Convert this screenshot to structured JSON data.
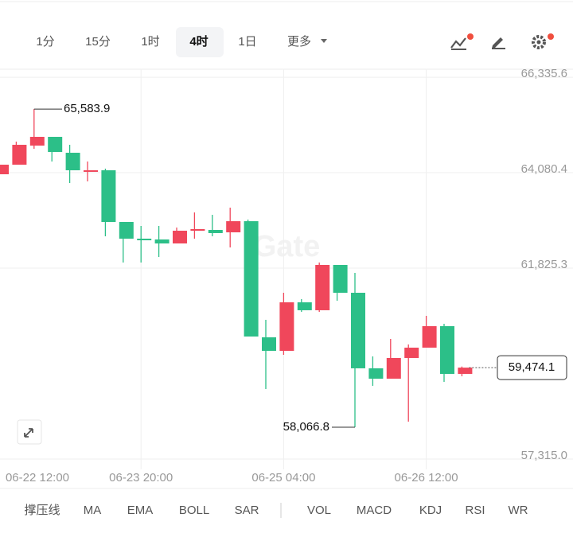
{
  "toolbar": {
    "intervals": [
      "1分",
      "15分",
      "1时",
      "4时",
      "1日",
      "更多"
    ],
    "selected_interval": 3
  },
  "chart_data": {
    "type": "candlestick",
    "watermark": "Gate",
    "x": [
      "06-22 12:00",
      null,
      null,
      null,
      null,
      null,
      null,
      null,
      "06-23 20:00",
      null,
      null,
      null,
      null,
      null,
      null,
      null,
      "06-25 04:00",
      null,
      null,
      null,
      null,
      null,
      null,
      null,
      "06-26 12:00",
      null,
      null
    ],
    "open": [
      64043,
      64269,
      64720,
      64927,
      64551,
      64100,
      64137,
      62916,
      62521,
      62502,
      62408,
      62709,
      62728,
      62671,
      62934,
      60190,
      59871,
      61017,
      60830,
      61901,
      61243,
      59458,
      59213,
      59702,
      59946,
      60454,
      59326
    ],
    "high": [
      64306,
      64814,
      65583.9,
      64927,
      64739,
      64344,
      64175,
      62916,
      62822,
      62822,
      62784,
      63141,
      63085,
      63254,
      62972,
      60604,
      61243,
      61093,
      61957,
      61901,
      61713,
      59739,
      60153,
      60021,
      60698,
      60510,
      59500
    ],
    "low": [
      64043,
      64269,
      64645,
      64344,
      63837,
      63874,
      62577,
      61957,
      61957,
      62089,
      62408,
      62521,
      62577,
      62314,
      60209,
      58969,
      59777,
      60792,
      60792,
      61055,
      58066.8,
      59044,
      59213,
      58198,
      59946,
      59138,
      59270
    ],
    "close": [
      64269,
      64739,
      64927,
      64570,
      64137,
      64137,
      62916,
      62521,
      62483,
      62408,
      62709,
      62747,
      62653,
      62934,
      60209,
      59871,
      61017,
      60830,
      61901,
      61243,
      59458,
      59213,
      59702,
      59946,
      60454,
      59326,
      59474.1
    ],
    "up_color": "#f0475b",
    "down_color": "#2cbf88",
    "ylim": [
      57070,
      66525
    ],
    "yticks": [
      {
        "value": 57315.0,
        "label": "57,315.0"
      },
      {
        "value": 61825.3,
        "label": "61,825.3"
      },
      {
        "value": 64080.4,
        "label": "64,080.4"
      },
      {
        "value": 66335.6,
        "label": "66,335.6"
      }
    ],
    "grid": true,
    "high_marker": {
      "value": 65583.9,
      "label": "65,583.9"
    },
    "low_marker": {
      "value": 58066.8,
      "label": "58,066.8"
    },
    "last_price": {
      "value": 59474.1,
      "label": "59,474.1"
    }
  },
  "indicators": [
    "撑压线",
    "MA",
    "EMA",
    "BOLL",
    "SAR",
    "VOL",
    "MACD",
    "KDJ",
    "RSI",
    "WR"
  ]
}
